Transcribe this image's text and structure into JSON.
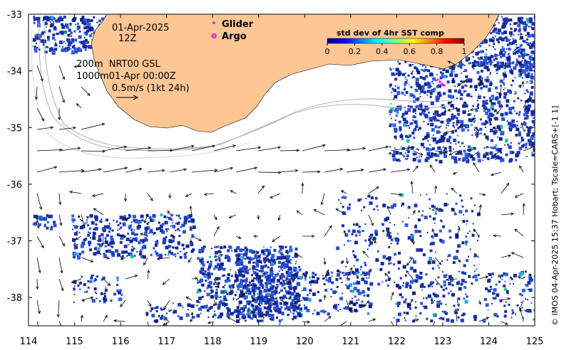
{
  "map": {
    "date": "01-Apr-2025",
    "hour": "12Z",
    "contour_info_line1": "200m  NRT00 GSL",
    "contour_info_line2": "1000m01-Apr 00:00Z",
    "vector_scale": "0.5m/s (1kt 24h)",
    "side_note": "© IMOS 04-Apr-2025 15:37 Hobart; Tscale=CARS+[-1 1]",
    "colors": {
      "land": "#fdc795",
      "ocean": "#ffffff",
      "sst_low": "#1a2f9e",
      "glider": "#ff00ff",
      "argo": "#ff00ff"
    }
  },
  "legend": {
    "glider_label": "Glider",
    "argo_label": "Argo",
    "glider_marker": "•",
    "argo_marker": "o"
  },
  "colorbar": {
    "title": "std dev of 4hr SST comp",
    "range": [
      0,
      1
    ],
    "ticks": [
      "0",
      "0.2",
      "0.4",
      "0.6",
      "0.8",
      "1"
    ],
    "colormap": "jet"
  },
  "axes": {
    "x_range": [
      114,
      125
    ],
    "y_range": [
      -38.5,
      -33
    ],
    "x_ticks": [
      "114",
      "115",
      "116",
      "117",
      "118",
      "119",
      "120",
      "121",
      "122",
      "123",
      "124",
      "125"
    ],
    "y_ticks": [
      "-33",
      "-34",
      "-35",
      "-36",
      "-37",
      "-38"
    ],
    "x_label": "",
    "y_label": ""
  }
}
